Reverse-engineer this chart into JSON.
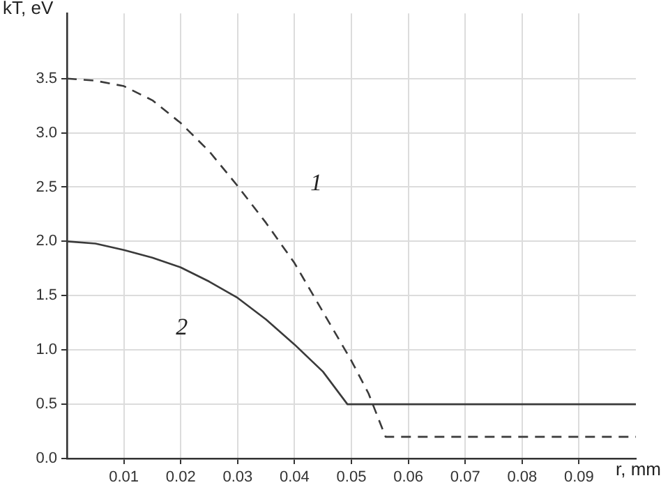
{
  "chart_data": {
    "type": "line",
    "xlabel": "r, mm",
    "ylabel": "kT, eV",
    "xlim": [
      0,
      0.1
    ],
    "xticks": [
      0.01,
      0.02,
      0.03,
      0.04,
      0.05,
      0.06,
      0.07,
      0.08,
      0.09
    ],
    "ylim": [
      0,
      4.1
    ],
    "yticks": [
      {
        "value": 0,
        "label": "0.0"
      },
      0.5,
      {
        "value": 1,
        "label": "1.0"
      },
      1.5,
      {
        "value": 2,
        "label": "2.0"
      },
      2.5,
      {
        "value": 3,
        "label": "3.0"
      },
      3.5
    ],
    "grid": true,
    "marker": "none",
    "series": [
      {
        "name": "1",
        "color": "#3a3a3a",
        "line_style": "dashed",
        "x": [
          0,
          0.005,
          0.01,
          0.015,
          0.02,
          0.025,
          0.03,
          0.035,
          0.04,
          0.045,
          0.05,
          0.053,
          0.056,
          0.1
        ],
        "values": [
          3.5,
          3.48,
          3.43,
          3.3,
          3.09,
          2.83,
          2.51,
          2.17,
          1.8,
          1.35,
          0.9,
          0.6,
          0.2,
          0.2
        ]
      },
      {
        "name": "2",
        "color": "#3a3a3a",
        "line_style": "solid",
        "x": [
          0,
          0.005,
          0.01,
          0.015,
          0.02,
          0.025,
          0.03,
          0.035,
          0.04,
          0.045,
          0.0493,
          0.1
        ],
        "values": [
          2.0,
          1.98,
          1.92,
          1.85,
          1.76,
          1.63,
          1.48,
          1.28,
          1.05,
          0.8,
          0.5,
          0.5
        ]
      }
    ]
  }
}
